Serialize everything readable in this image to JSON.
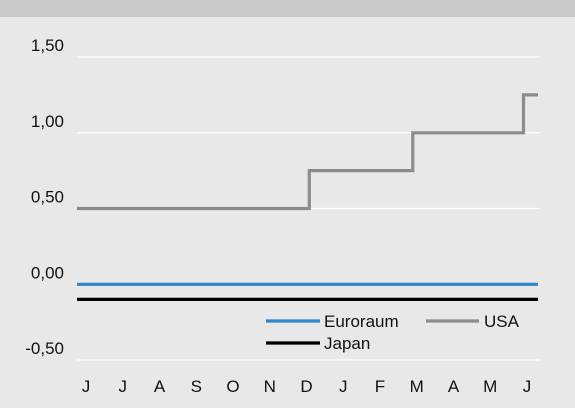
{
  "chart_data": {
    "type": "line",
    "title": "",
    "xlabel": "",
    "ylabel": "",
    "categories": [
      "J",
      "J",
      "A",
      "S",
      "O",
      "N",
      "D",
      "J",
      "F",
      "M",
      "A",
      "M",
      "J"
    ],
    "ylim": [
      -0.5,
      1.5
    ],
    "yticks": [
      "1,50",
      "1,00",
      "0,50",
      "0,00",
      "-0,50"
    ],
    "ytick_values": [
      1.5,
      1.0,
      0.5,
      0.0,
      -0.5
    ],
    "grid": true,
    "legend_position": "bottom-right",
    "colors": {
      "background": "#e8e8e8",
      "top_band": "#c8c8c8",
      "grid": "#ffffff",
      "Euroraum": "#2f86c9",
      "USA": "#8c8c8c",
      "Japan": "#000000"
    },
    "x_range": [
      0,
      12.7
    ],
    "series": [
      {
        "name": "Euroraum",
        "points": [
          [
            0,
            0
          ],
          [
            12.7,
            0
          ]
        ]
      },
      {
        "name": "USA",
        "points": [
          [
            0,
            0.5
          ],
          [
            6.4,
            0.5
          ],
          [
            6.4,
            0.75
          ],
          [
            9.25,
            0.75
          ],
          [
            9.25,
            1.0
          ],
          [
            12.3,
            1.0
          ],
          [
            12.3,
            1.25
          ],
          [
            12.7,
            1.25
          ]
        ]
      },
      {
        "name": "Japan",
        "points": [
          [
            0,
            -0.1
          ],
          [
            12.7,
            -0.1
          ]
        ]
      }
    ]
  }
}
